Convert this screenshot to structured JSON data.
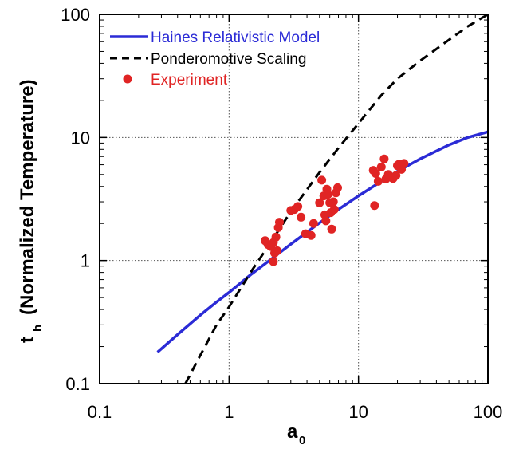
{
  "chart_data": {
    "type": "line",
    "xlabel": "a",
    "xlabel_subscript": "0",
    "ylabel": "t",
    "ylabel_subscript": "h",
    "ylabel_rest": "(Normalized Temperature)",
    "xscale": "log",
    "yscale": "log",
    "xlim": [
      0.1,
      100
    ],
    "ylim": [
      0.1,
      100
    ],
    "xticks": [
      0.1,
      1,
      10,
      100
    ],
    "xtick_labels": [
      "0.1",
      "1",
      "10",
      "100"
    ],
    "yticks": [
      0.1,
      1,
      10,
      100
    ],
    "ytick_labels": [
      "0.1",
      "1",
      "10",
      "100"
    ],
    "grid": true,
    "legend_position": "top-left",
    "series": [
      {
        "name": "Haines Relativistic Model",
        "kind": "line",
        "style": "solid",
        "color": "#2b2bd6",
        "x": [
          0.28,
          0.4,
          0.6,
          0.8,
          1.0,
          1.5,
          2.0,
          3.0,
          5.0,
          7.0,
          10.0,
          15.0,
          20.0,
          30.0,
          50.0,
          70.0,
          100.0
        ],
        "y": [
          0.18,
          0.25,
          0.36,
          0.46,
          0.55,
          0.78,
          0.98,
          1.36,
          2.02,
          2.6,
          3.35,
          4.4,
          5.3,
          6.7,
          8.7,
          10.0,
          11.1
        ]
      },
      {
        "name": "Ponderomotive Scaling",
        "kind": "line",
        "style": "dashed",
        "color": "#000000",
        "x": [
          0.46,
          0.6,
          0.8,
          1.0,
          1.5,
          2.0,
          3.0,
          5.0,
          7.0,
          10.0,
          15.0,
          20.0,
          30.0,
          50.0,
          70.0,
          100.0
        ],
        "y": [
          0.1,
          0.17,
          0.3,
          0.42,
          0.83,
          1.3,
          2.5,
          5.2,
          8.2,
          13.0,
          22.0,
          30.0,
          42.0,
          62.0,
          80.0,
          100.0
        ]
      },
      {
        "name": "Experiment",
        "kind": "scatter",
        "color": "#e02424",
        "points": [
          [
            1.9,
            1.45
          ],
          [
            2.0,
            1.35
          ],
          [
            2.1,
            1.3
          ],
          [
            2.2,
            1.4
          ],
          [
            2.25,
            1.15
          ],
          [
            2.2,
            0.98
          ],
          [
            2.3,
            1.55
          ],
          [
            2.4,
            1.85
          ],
          [
            2.45,
            2.05
          ],
          [
            2.35,
            1.2
          ],
          [
            3.0,
            2.55
          ],
          [
            3.2,
            2.6
          ],
          [
            3.4,
            2.75
          ],
          [
            3.6,
            2.25
          ],
          [
            3.9,
            1.65
          ],
          [
            4.3,
            1.6
          ],
          [
            4.5,
            2.0
          ],
          [
            5.0,
            2.95
          ],
          [
            5.2,
            4.5
          ],
          [
            5.4,
            3.35
          ],
          [
            5.5,
            2.35
          ],
          [
            5.6,
            2.1
          ],
          [
            5.7,
            3.8
          ],
          [
            5.8,
            3.45
          ],
          [
            6.0,
            2.95
          ],
          [
            6.1,
            2.45
          ],
          [
            6.2,
            1.8
          ],
          [
            6.4,
            3.0
          ],
          [
            6.5,
            2.6
          ],
          [
            6.7,
            3.55
          ],
          [
            6.9,
            3.9
          ],
          [
            13.0,
            5.4
          ],
          [
            13.3,
            2.8
          ],
          [
            13.6,
            5.1
          ],
          [
            14.2,
            4.4
          ],
          [
            15.0,
            5.75
          ],
          [
            15.8,
            6.7
          ],
          [
            16.3,
            4.6
          ],
          [
            17.0,
            5.0
          ],
          [
            18.5,
            4.65
          ],
          [
            19.5,
            4.9
          ],
          [
            20.0,
            5.9
          ],
          [
            20.5,
            6.05
          ],
          [
            21.5,
            5.5
          ],
          [
            22.5,
            6.15
          ]
        ]
      }
    ]
  }
}
